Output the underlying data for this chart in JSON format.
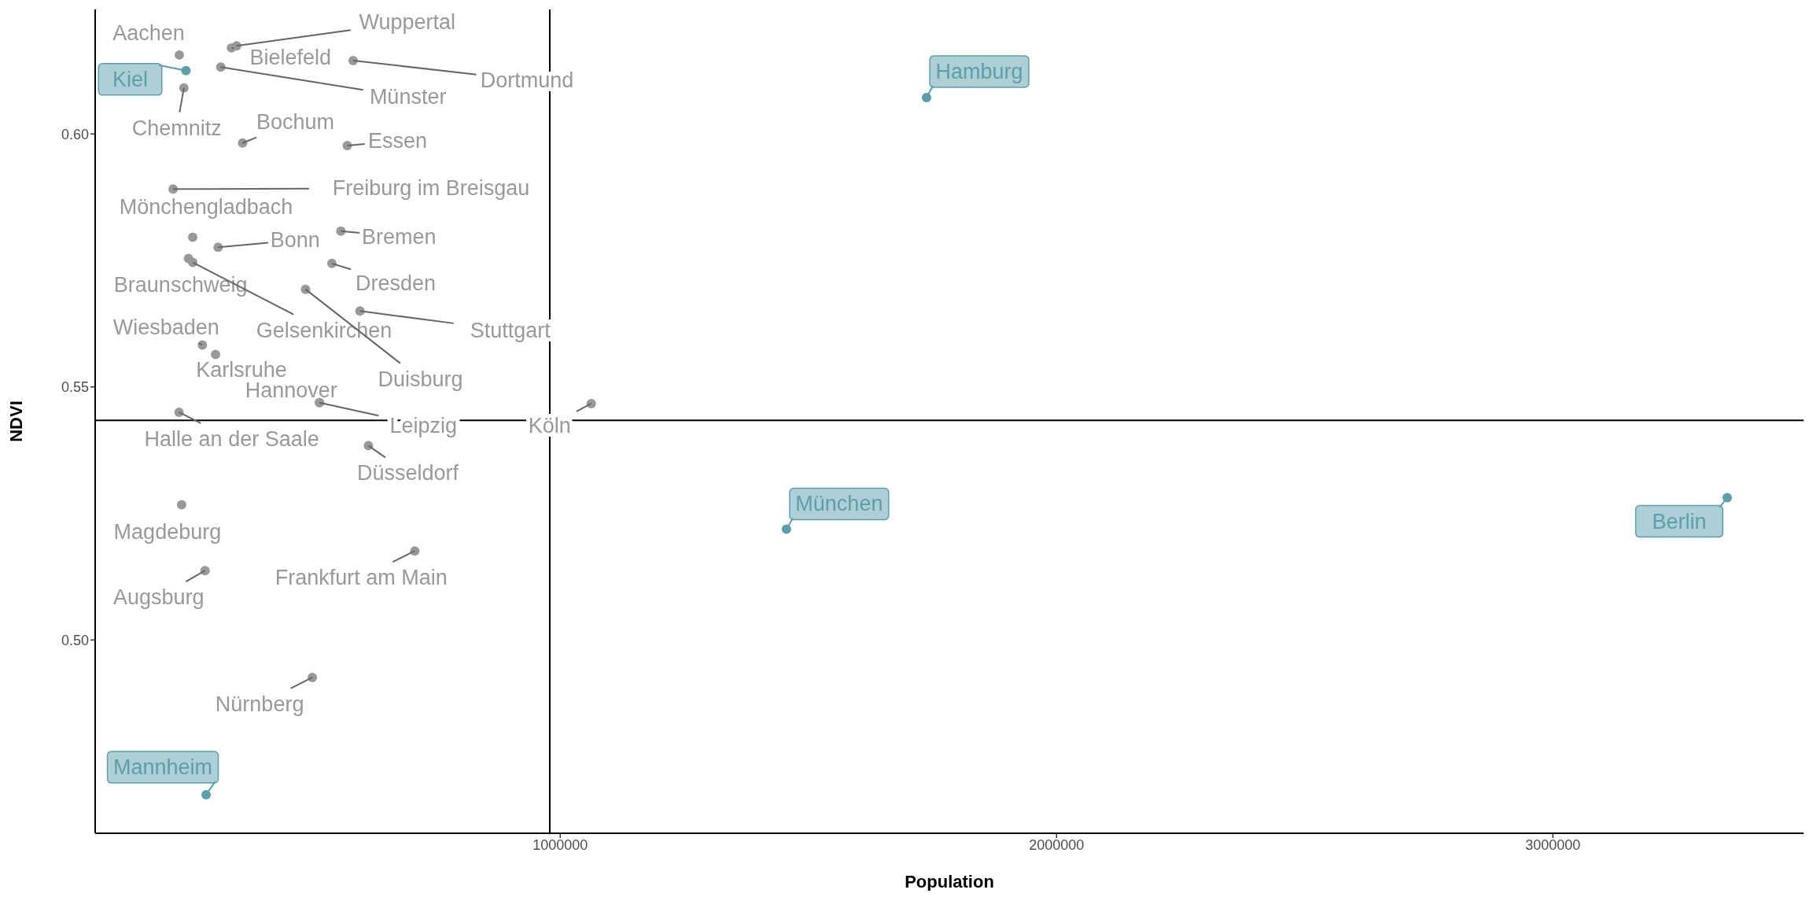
{
  "chart_data": {
    "type": "scatter",
    "xlabel": "Population",
    "ylabel": "NDVI",
    "xlim": [
      63000,
      3505000
    ],
    "ylim": [
      0.4618,
      0.6246
    ],
    "xticks": [
      1000000,
      2000000,
      3000000
    ],
    "yticks": [
      {
        "value": 0.5,
        "label": "0.50"
      },
      0.55,
      {
        "value": 0.6,
        "label": "0.60"
      }
    ],
    "marker": "circle",
    "series": [
      {
        "color": "#999999",
        "x": [
          232500,
          241800,
          337600,
          348000,
          316000,
          582800,
          360000,
          571000,
          220000,
          259500,
          558000,
          310700,
          251000,
          259500,
          540000,
          486800,
          596600,
          279000,
          305500,
          515000,
          515000,
          232000,
          1062600,
          613600,
          237200,
          706900,
          284400,
          500600
        ],
        "values": [
          0.6156,
          0.6091,
          0.617,
          0.6174,
          0.6132,
          0.6145,
          0.5982,
          0.5977,
          0.5891,
          0.5796,
          0.5808,
          0.5776,
          0.5754,
          0.5746,
          0.5744,
          0.5693,
          0.565,
          0.5583,
          0.5564,
          0.5469,
          0.5469,
          0.545,
          0.5467,
          0.5384,
          0.5267,
          0.5176,
          0.5137,
          0.4926
        ]
      },
      {
        "color": "#5b9fab",
        "x": [
          246000,
          286500,
          1738000,
          1455800,
          3351200
        ],
        "values": [
          0.6125,
          0.4694,
          0.6072,
          0.5219,
          0.5281
        ]
      }
    ],
    "ref_lines": [
      {
        "axis": "x",
        "value": 979000,
        "color": "#000000"
      },
      {
        "axis": "y",
        "value": 0.5434,
        "color": "#000000"
      }
    ],
    "annotations": [
      {
        "text": "Aachen",
        "x": 232500,
        "y": 0.6156
      },
      {
        "text": "Kiel",
        "x": 246000,
        "y": 0.6125
      },
      {
        "text": "Chemnitz",
        "x": 241800,
        "y": 0.6091
      },
      {
        "text": "Bielefeld",
        "x": 337600,
        "y": 0.617
      },
      {
        "text": "Wuppertal",
        "x": 348000,
        "y": 0.6174
      },
      {
        "text": "Münster",
        "x": 316000,
        "y": 0.6132
      },
      {
        "text": "Dortmund",
        "x": 582800,
        "y": 0.6145
      },
      {
        "text": "Bochum",
        "x": 360000,
        "y": 0.5982
      },
      {
        "text": "Essen",
        "x": 571000,
        "y": 0.5977
      },
      {
        "text": "Freiburg im Breisgau",
        "x": 220000,
        "y": 0.5891
      },
      {
        "text": "Mönchengladbach",
        "x": 259500,
        "y": 0.5796
      },
      {
        "text": "Bremen",
        "x": 558000,
        "y": 0.5808
      },
      {
        "text": "Bonn",
        "x": 310700,
        "y": 0.5776
      },
      {
        "text": "Braunschweig",
        "x": 251000,
        "y": 0.5754
      },
      {
        "text": "Gelsenkirchen",
        "x": 259500,
        "y": 0.5746
      },
      {
        "text": "Dresden",
        "x": 540000,
        "y": 0.5744
      },
      {
        "text": "Duisburg",
        "x": 486800,
        "y": 0.5693
      },
      {
        "text": "Stuttgart",
        "x": 596600,
        "y": 0.565
      },
      {
        "text": "Wiesbaden",
        "x": 279000,
        "y": 0.5583
      },
      {
        "text": "Karlsruhe",
        "x": 305500,
        "y": 0.5564
      },
      {
        "text": "Hannover",
        "x": 515000,
        "y": 0.5469
      },
      {
        "text": "Leipzig",
        "x": 515000,
        "y": 0.5469
      },
      {
        "text": "Halle an der Saale",
        "x": 232000,
        "y": 0.545
      },
      {
        "text": "Köln",
        "x": 1062600,
        "y": 0.5467
      },
      {
        "text": "Düsseldorf",
        "x": 613600,
        "y": 0.5384
      },
      {
        "text": "Magdeburg",
        "x": 237200,
        "y": 0.5267
      },
      {
        "text": "Frankfurt am Main",
        "x": 706900,
        "y": 0.5176
      },
      {
        "text": "Augsburg",
        "x": 284400,
        "y": 0.5137
      },
      {
        "text": "Nürnberg",
        "x": 500600,
        "y": 0.4926
      },
      {
        "text": "Mannheim",
        "x": 286500,
        "y": 0.4694
      },
      {
        "text": "Hamburg",
        "x": 1738000,
        "y": 0.6072
      },
      {
        "text": "München",
        "x": 1455800,
        "y": 0.5219
      },
      {
        "text": "Berlin",
        "x": 3351200,
        "y": 0.5281
      }
    ]
  }
}
